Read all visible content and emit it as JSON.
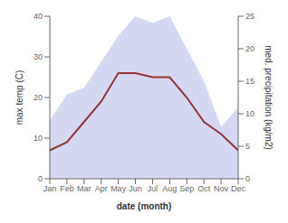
{
  "chart_data": {
    "type": "line",
    "categories": [
      "Jan",
      "Feb",
      "Mar",
      "Apr",
      "May",
      "Jun",
      "Jul",
      "Aug",
      "Sep",
      "Oct",
      "Nov",
      "Dec"
    ],
    "series": [
      {
        "type": "area",
        "axis": "y2",
        "color": "#b0b8e8",
        "values": [
          9,
          13,
          14,
          18,
          22,
          25,
          24,
          25,
          20,
          15,
          8,
          11
        ]
      },
      {
        "type": "line",
        "color": "#993333",
        "values": [
          7,
          9,
          14,
          19,
          26,
          26,
          25,
          25,
          20,
          14,
          11,
          7
        ]
      }
    ],
    "xlabel": "date (month)",
    "ylabel": "max temp (C)",
    "y2label": "med. precipitation (kg/m2)",
    "ylim": [
      0,
      40
    ],
    "yticks": [
      0,
      10,
      20,
      30,
      40
    ],
    "y2lim": [
      0,
      25
    ],
    "y2ticks": [
      0,
      5,
      10,
      15,
      20,
      25
    ],
    "grid": false
  }
}
